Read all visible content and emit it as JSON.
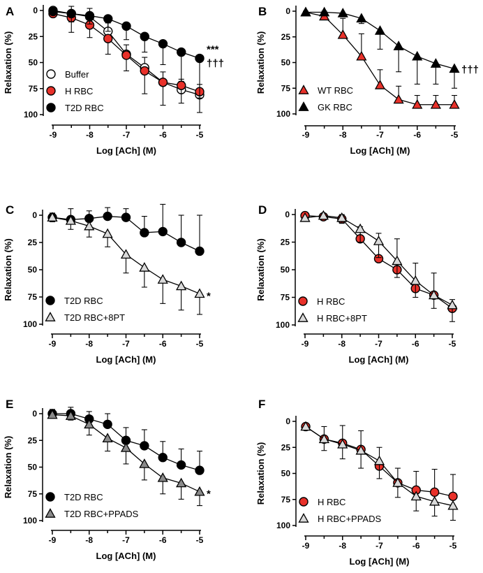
{
  "chart_data": [
    {
      "panel": "A",
      "type": "line",
      "xlabel": "Log [ACh] (M)",
      "ylabel": "Relaxation (%)",
      "xlim": [
        -9,
        -5
      ],
      "ylim": [
        0,
        100
      ],
      "y_inverted": true,
      "x_ticks": [
        "-9",
        "-8",
        "-7",
        "-6",
        "-5"
      ],
      "y_ticks": [
        "0",
        "25",
        "50",
        "75",
        "100"
      ],
      "x": [
        -9,
        -8.5,
        -8,
        -7.5,
        -7,
        -6.5,
        -6,
        -5.5,
        -5
      ],
      "legend_position": "bottom-left",
      "annotations": [
        "***",
        "†††"
      ],
      "series": [
        {
          "name": "Buffer",
          "marker": "circle",
          "fill": "#ffffff",
          "values": [
            0,
            3,
            6,
            20,
            42,
            55,
            69,
            76,
            81
          ],
          "errors": [
            1,
            7,
            8,
            8,
            9,
            10,
            10,
            10,
            10
          ]
        },
        {
          "name": "H RBC",
          "marker": "circle",
          "fill": "#e8312a",
          "values": [
            3,
            7,
            14,
            27,
            43,
            58,
            69,
            72,
            78
          ],
          "errors": [
            3,
            14,
            12,
            15,
            15,
            22,
            22,
            17,
            20
          ]
        },
        {
          "name": "T2D RBC",
          "marker": "circle",
          "fill": "#000000",
          "values": [
            1,
            3,
            5,
            8,
            15,
            25,
            32,
            40,
            46
          ],
          "errors": [
            3,
            8,
            8,
            12,
            13,
            15,
            20,
            28,
            38
          ]
        }
      ]
    },
    {
      "panel": "B",
      "type": "line",
      "xlabel": "Log [ACh] (M)",
      "ylabel": "Relaxation (%)",
      "xlim": [
        -9,
        -5
      ],
      "ylim": [
        0,
        100
      ],
      "y_inverted": true,
      "x_ticks": [
        "-9",
        "-8",
        "-7",
        "-6",
        "-5"
      ],
      "y_ticks": [
        "0",
        "25",
        "50",
        "75",
        "100"
      ],
      "x": [
        -9,
        -8.5,
        -8,
        -7.5,
        -7,
        -6.5,
        -6,
        -5.5,
        -5
      ],
      "legend_position": "bottom-left",
      "annotations": [
        "†††"
      ],
      "series": [
        {
          "name": "WT RBC",
          "marker": "triangle",
          "fill": "#e8312a",
          "values": [
            1,
            5,
            23,
            44,
            72,
            86,
            91,
            91,
            91
          ],
          "errors": [
            1,
            5,
            16,
            22,
            15,
            13,
            9,
            9,
            9
          ]
        },
        {
          "name": "GK RBC",
          "marker": "triangle",
          "fill": "#000000",
          "values": [
            1,
            1,
            2,
            7,
            19,
            34,
            44,
            51,
            56
          ],
          "errors": [
            1,
            1,
            2,
            5,
            18,
            25,
            27,
            20,
            19
          ]
        }
      ]
    },
    {
      "panel": "C",
      "type": "line",
      "xlabel": "Log [ACh] (M)",
      "ylabel": "Relaxation (%)",
      "xlim": [
        -9,
        -5
      ],
      "ylim": [
        0,
        100
      ],
      "y_inverted": true,
      "x_ticks": [
        "-9",
        "-8",
        "-7",
        "-6",
        "-5"
      ],
      "y_ticks": [
        "0",
        "25",
        "50",
        "75",
        "100"
      ],
      "x": [
        -9,
        -8.5,
        -8,
        -7.5,
        -7,
        -6.5,
        -6,
        -5.5,
        -5
      ],
      "legend_position": "bottom-left",
      "annotations": [
        "*"
      ],
      "series": [
        {
          "name": "T2D RBC",
          "marker": "circle",
          "fill": "#000000",
          "values": [
            2,
            4,
            3,
            1,
            2,
            16,
            15,
            25,
            33
          ],
          "errors": [
            4,
            10,
            7,
            8,
            8,
            15,
            25,
            25,
            33
          ]
        },
        {
          "name": "T2D RBC+8PT",
          "marker": "triangle",
          "fill": "#d9d9d9",
          "values": [
            2,
            5,
            10,
            17,
            36,
            48,
            59,
            65,
            72
          ],
          "errors": [
            4,
            8,
            10,
            12,
            17,
            18,
            22,
            22,
            19
          ]
        }
      ]
    },
    {
      "panel": "D",
      "type": "line",
      "xlabel": "Log [ACh] (M)",
      "ylabel": "Relaxation (%)",
      "xlim": [
        -9,
        -5
      ],
      "ylim": [
        0,
        100
      ],
      "y_inverted": true,
      "x_ticks": [
        "-9",
        "-8",
        "-7",
        "-6",
        "-5"
      ],
      "y_ticks": [
        "0",
        "25",
        "50",
        "75",
        "100"
      ],
      "x": [
        -9,
        -8.5,
        -8,
        -7.5,
        -7,
        -6.5,
        -6,
        -5.5,
        -5
      ],
      "legend_position": "bottom-left",
      "annotations": [],
      "series": [
        {
          "name": "H RBC",
          "marker": "circle",
          "fill": "#e8312a",
          "values": [
            1,
            2,
            4,
            22,
            40,
            50,
            67,
            73,
            85
          ],
          "errors": [
            1,
            3,
            4,
            11,
            23,
            28,
            23,
            20,
            8
          ]
        },
        {
          "name": "H RBC+8PT",
          "marker": "triangle",
          "fill": "#d9d9d9",
          "values": [
            3,
            1,
            3,
            13,
            24,
            42,
            60,
            73,
            82
          ],
          "errors": [
            3,
            3,
            5,
            12,
            15,
            15,
            15,
            12,
            15
          ]
        }
      ]
    },
    {
      "panel": "E",
      "type": "line",
      "xlabel": "Log [ACh] (M)",
      "ylabel": "Relaxation (%)",
      "xlim": [
        -9,
        -5
      ],
      "ylim": [
        0,
        100
      ],
      "y_inverted": true,
      "x_ticks": [
        "-9",
        "-8",
        "-7",
        "-6",
        "-5"
      ],
      "y_ticks": [
        "0",
        "25",
        "50",
        "75",
        "100"
      ],
      "x": [
        -9,
        -8.5,
        -8,
        -7.5,
        -7,
        -6.5,
        -6,
        -5.5,
        -5
      ],
      "legend_position": "bottom-left",
      "annotations": [
        "*"
      ],
      "series": [
        {
          "name": "T2D RBC",
          "marker": "circle",
          "fill": "#000000",
          "values": [
            0,
            0,
            5,
            10,
            25,
            30,
            41,
            48,
            53
          ],
          "errors": [
            4,
            6,
            7,
            10,
            12,
            15,
            15,
            15,
            18
          ]
        },
        {
          "name": "T2D RBC+PPADS",
          "marker": "triangle",
          "fill": "#8a8a8a",
          "values": [
            1,
            2,
            10,
            23,
            32,
            47,
            60,
            65,
            73
          ],
          "errors": [
            3,
            4,
            10,
            12,
            15,
            15,
            15,
            15,
            13
          ]
        }
      ]
    },
    {
      "panel": "F",
      "type": "line",
      "xlabel": "Log [ACh] (M)",
      "ylabel": "Relaxation (%)",
      "xlim": [
        -9,
        -5
      ],
      "ylim": [
        0,
        100
      ],
      "y_inverted": true,
      "x_ticks": [
        "-9",
        "-8",
        "-7",
        "-6",
        "-5"
      ],
      "y_ticks": [
        "0",
        "25",
        "50",
        "75",
        "100"
      ],
      "x": [
        -9,
        -8.5,
        -8,
        -7.5,
        -7,
        -6.5,
        -6,
        -5.5,
        -5
      ],
      "legend_position": "bottom-left",
      "annotations": [],
      "series": [
        {
          "name": "H RBC",
          "marker": "circle",
          "fill": "#e8312a",
          "values": [
            5,
            17,
            21,
            27,
            43,
            59,
            66,
            68,
            72
          ],
          "errors": [
            3,
            12,
            17,
            18,
            18,
            14,
            18,
            22,
            21
          ]
        },
        {
          "name": "H RBC+PPADS",
          "marker": "triangle",
          "fill": "#d9d9d9",
          "values": [
            5,
            17,
            22,
            28,
            38,
            59,
            72,
            77,
            81
          ],
          "errors": [
            3,
            11,
            14,
            17,
            17,
            14,
            14,
            14,
            14
          ]
        }
      ]
    }
  ]
}
